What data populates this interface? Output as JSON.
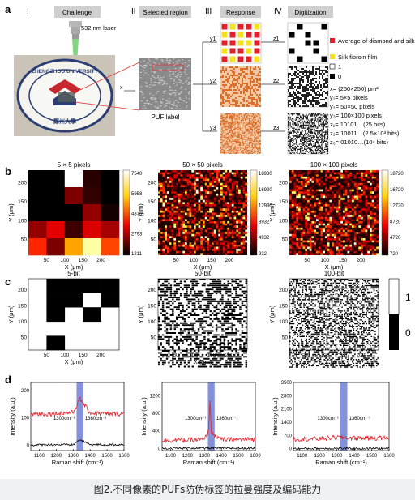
{
  "figure": {
    "caption": "图2.不同像素的PUFs防伪标签的拉曼强度及编码能力",
    "panel_letters": [
      "a",
      "b",
      "c",
      "d"
    ],
    "panel_a": {
      "stage_numerals": [
        "I",
        "II",
        "III",
        "IV"
      ],
      "stage_titles": [
        "Challenge",
        "Selected region",
        "Response",
        "Digitization"
      ],
      "laser_label": "532 nm laser",
      "logo_text": "ZHENGZHOU UNIVERSITY",
      "logo_chinese": "鄭州大學",
      "puf_label": "PUF label",
      "x_marker": "x",
      "y_labels": [
        "y1",
        "y2",
        "y3"
      ],
      "z_labels": [
        "z1",
        "z2",
        "z3"
      ],
      "legend": [
        {
          "text": "Average of diamond and silk fibroin film",
          "color": "#e0202a"
        },
        {
          "text": "Silk fibroin film",
          "color": "#f2e21a"
        },
        {
          "text": "1",
          "color": "#ffffff"
        },
        {
          "text": "0",
          "color": "#000000"
        }
      ],
      "notes": [
        "x= (250×250) μm²",
        "y₁= 5×5 pixels",
        "y₂= 50×50 pixels",
        "y₃= 100×100 pixels",
        "z₁= 10101…(25 bits)",
        "z₂= 10011…(2.5×10³ bits)",
        "z₃= 01010…(10⁴ bits)"
      ]
    },
    "panel_b": {
      "titles": [
        "5 × 5 pixels",
        "50 × 50 pixels",
        "100 × 100 pixels"
      ],
      "xlabel": "X (μm)",
      "ylabel": "Y (μm)",
      "x_ticks": [
        "50",
        "100",
        "150",
        "200"
      ],
      "y_ticks": [
        "200",
        "150",
        "100",
        "50"
      ],
      "colorbars": [
        [
          "7540",
          "5958",
          "4376",
          "2793",
          "1211"
        ],
        [
          "18930",
          "16930",
          "12930",
          "8932",
          "4932",
          "932"
        ],
        [
          "18720",
          "16720",
          "12720",
          "8720",
          "4720",
          "720"
        ]
      ]
    },
    "panel_c": {
      "titles": [
        "5-bit",
        "50-bit",
        "100-bit"
      ],
      "xlabel": "X (μm)",
      "ylabel": "Y (μm)",
      "x_ticks": [
        "50",
        "100",
        "150",
        "200"
      ],
      "y_ticks": [
        "200",
        "150",
        "100",
        "50"
      ],
      "colorbar_ticks": [
        "1",
        "0"
      ]
    },
    "panel_d": {
      "xlabel": "Raman shift (cm⁻¹)",
      "ylabel": "Intensity (a.u.)",
      "x_ticks": [
        "1100",
        "1200",
        "1300",
        "1400",
        "1500",
        "1600"
      ],
      "y_ticks": [
        [
          "0",
          "100",
          "200"
        ],
        [
          "0",
          "400",
          "800",
          "1200"
        ],
        [
          "0",
          "700",
          "1400",
          "2100",
          "2800",
          "3500"
        ]
      ],
      "annotations": [
        "1300cm⁻¹",
        "1360cm⁻¹"
      ]
    }
  },
  "chart_data": [
    {
      "type": "heatmap",
      "title": "5 × 5 pixels",
      "xlabel": "X (μm)",
      "ylabel": "Y (μm)",
      "colorbar_range": [
        1211,
        7540
      ],
      "values_estimated": [
        [
          1211,
          1211,
          7540,
          1600,
          1211
        ],
        [
          1211,
          1211,
          2400,
          1700,
          1211
        ],
        [
          1211,
          1211,
          1211,
          2600,
          1400
        ],
        [
          2600,
          3400,
          1800,
          3300,
          2800
        ],
        [
          4000,
          2400,
          5200,
          6800,
          4300
        ]
      ]
    },
    {
      "type": "heatmap",
      "title": "50 × 50 pixels",
      "xlabel": "X (μm)",
      "ylabel": "Y (μm)",
      "colorbar_range": [
        932,
        18930
      ]
    },
    {
      "type": "heatmap",
      "title": "100 × 100 pixels",
      "xlabel": "X (μm)",
      "ylabel": "Y (μm)",
      "colorbar_range": [
        720,
        18720
      ]
    },
    {
      "type": "heatmap",
      "title": "5-bit",
      "values": [
        [
          1,
          0,
          0,
          0,
          0
        ],
        [
          1,
          0,
          0,
          1,
          0
        ],
        [
          1,
          0,
          1,
          0,
          1
        ],
        [
          1,
          1,
          1,
          1,
          1
        ],
        [
          1,
          0,
          1,
          1,
          1
        ]
      ]
    },
    {
      "type": "heatmap",
      "title": "50-bit"
    },
    {
      "type": "heatmap",
      "title": "100-bit"
    },
    {
      "type": "line",
      "xlabel": "Raman shift (cm⁻¹)",
      "ylabel": "Intensity (a.u.)",
      "xlim": [
        1050,
        1600
      ],
      "ylim": [
        -20,
        230
      ],
      "highlight_band": [
        1320,
        1360
      ],
      "series": [
        {
          "color": "#e0202a",
          "x": [
            1050,
            1150,
            1250,
            1300,
            1340,
            1400,
            1500,
            1600
          ],
          "y": [
            115,
            115,
            118,
            120,
            170,
            118,
            115,
            115
          ]
        },
        {
          "color": "#000000",
          "x": [
            1050,
            1150,
            1250,
            1300,
            1340,
            1400,
            1500,
            1600
          ],
          "y": [
            0,
            2,
            1,
            2,
            20,
            2,
            1,
            2
          ]
        }
      ]
    },
    {
      "type": "line",
      "xlabel": "Raman shift (cm⁻¹)",
      "ylabel": "Intensity (a.u.)",
      "xlim": [
        1050,
        1600
      ],
      "ylim": [
        -50,
        1500
      ],
      "highlight_band": [
        1320,
        1360
      ],
      "series": [
        {
          "color": "#e0202a",
          "x": [
            1050,
            1200,
            1300,
            1325,
            1332,
            1340,
            1400,
            1500,
            1600
          ],
          "y": [
            180,
            190,
            200,
            400,
            1200,
            350,
            200,
            200,
            210
          ]
        },
        {
          "color": "#000000",
          "x": [
            1050,
            1200,
            1300,
            1400,
            1500,
            1600
          ],
          "y": [
            0,
            5,
            8,
            5,
            3,
            5
          ]
        }
      ]
    },
    {
      "type": "line",
      "xlabel": "Raman shift (cm⁻¹)",
      "ylabel": "Intensity (a.u.)",
      "xlim": [
        1050,
        1600
      ],
      "ylim": [
        -100,
        3500
      ],
      "highlight_band": [
        1320,
        1360
      ],
      "series": [
        {
          "color": "#e0202a",
          "x": [
            1050,
            1200,
            1300,
            1400,
            1500,
            1600
          ],
          "y": [
            500,
            520,
            600,
            560,
            560,
            570
          ]
        },
        {
          "color": "#000000",
          "x": [
            1050,
            1200,
            1300,
            1400,
            1500,
            1600
          ],
          "y": [
            0,
            10,
            15,
            10,
            8,
            10
          ]
        }
      ]
    }
  ]
}
